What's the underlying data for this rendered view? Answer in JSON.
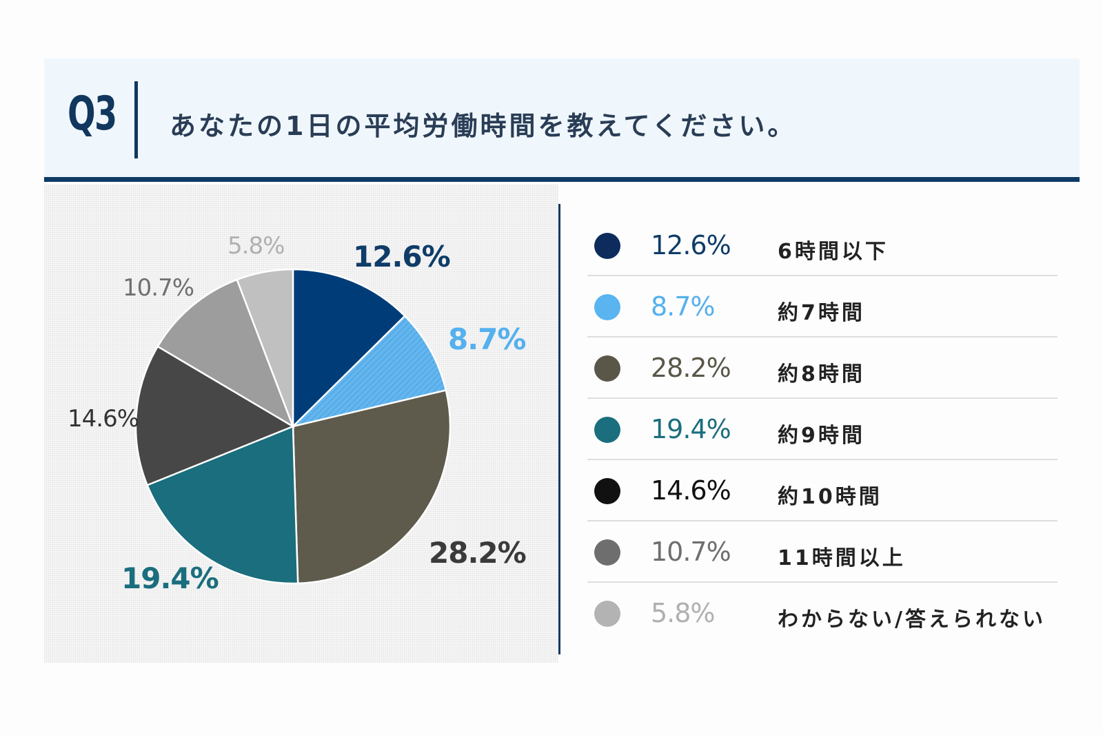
{
  "header": {
    "question_no": "Q3",
    "title": "あなたの1日の平均労働時間を教えてください。"
  },
  "chart_data": {
    "type": "pie",
    "title": "あなたの1日の平均労働時間を教えてください。",
    "categories": [
      "6時間以下",
      "約7時間",
      "約8時間",
      "約9時間",
      "約10時間",
      "11時間以上",
      "わからない/答えられない"
    ],
    "values": [
      12.6,
      8.7,
      28.2,
      19.4,
      14.6,
      10.7,
      5.8
    ],
    "value_labels": [
      "12.6%",
      "8.7%",
      "28.2%",
      "19.4%",
      "14.6%",
      "10.7%",
      "5.8%"
    ],
    "slice_colors": [
      "#003d78",
      "#64b6ef",
      "#5f5b4c",
      "#1a6e7d",
      "#474747",
      "#9d9d9d",
      "#c0c0c0"
    ],
    "label_colors": [
      "#0f3c68",
      "#55b0ee",
      "#3a3a3a",
      "#1a6e7d",
      "#333333",
      "#707070",
      "#b0b0b0"
    ],
    "legend_dot_colors": [
      "#0d2b5c",
      "#5ab4f0",
      "#5a5749",
      "#1a6e7d",
      "#111111",
      "#6e6e6e",
      "#b3b3b3"
    ],
    "legend_placement": "right",
    "start_angle": "12 o'clock",
    "direction": "clockwise"
  }
}
